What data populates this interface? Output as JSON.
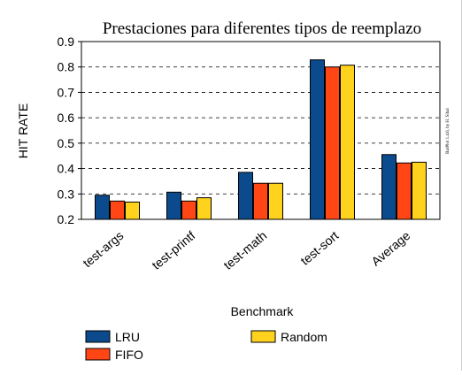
{
  "chart_data": {
    "type": "bar",
    "title": "Prestaciones para diferentes tipos de reemplazo",
    "xlabel": "Benchmark",
    "ylabel": "HIT RATE",
    "ylim": [
      0.2,
      0.9
    ],
    "yticks": [
      "0.2",
      "0.3",
      "0.4",
      "0.5",
      "0.6",
      "0.7",
      "0.8",
      "0.9"
    ],
    "categories": [
      "test-args",
      "test-printf",
      "test-math",
      "test-sort",
      "Average"
    ],
    "series": [
      {
        "name": "LRU",
        "color": "#0b4a8c",
        "values": [
          0.295,
          0.307,
          0.385,
          0.828,
          0.455
        ]
      },
      {
        "name": "FIFO",
        "color": "#ff4614",
        "values": [
          0.272,
          0.272,
          0.342,
          0.8,
          0.422
        ]
      },
      {
        "name": "Random",
        "color": "#ffd21e",
        "values": [
          0.268,
          0.285,
          0.342,
          0.807,
          0.425
        ]
      }
    ],
    "grid": true,
    "legend_position": "bottom",
    "credit": "BarPlot 1.4.6, by H. Sihal"
  }
}
